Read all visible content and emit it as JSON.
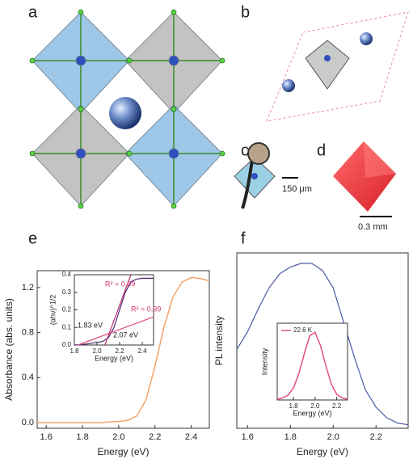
{
  "panel_labels": [
    "a",
    "b",
    "c",
    "d",
    "e",
    "f"
  ],
  "scale_bars": [
    "150 μm",
    "0.3 mm"
  ],
  "chart_data": [
    {
      "type": "line",
      "xlabel": "Energy (eV)",
      "ylabel": "Absorbance (abs. units)",
      "x": [
        1.55,
        1.6,
        1.65,
        1.7,
        1.75,
        1.8,
        1.85,
        1.9,
        1.95,
        2.0,
        2.05,
        2.1,
        2.15,
        2.2,
        2.25,
        2.3,
        2.35,
        2.4,
        2.45,
        2.5
      ],
      "series": [
        {
          "color": "#f2a46a",
          "values": [
            0.0,
            0.0,
            0.0,
            0.0,
            0.0,
            0.0,
            0.0,
            0.0,
            0.005,
            0.01,
            0.02,
            0.06,
            0.2,
            0.5,
            0.85,
            1.12,
            1.25,
            1.29,
            1.28,
            1.26
          ]
        }
      ],
      "xlim": [
        1.55,
        2.5
      ],
      "ylim": [
        -0.05,
        1.35
      ],
      "xticks": [
        1.6,
        1.8,
        {
          "value": 2,
          "label": "2.0"
        },
        2.2,
        2.4
      ],
      "yticks": [
        {
          "value": 0,
          "label": "0.0"
        },
        0.4,
        0.8,
        1.2
      ]
    },
    {
      "type": "line",
      "xlabel": "Energy (eV)",
      "ylabel": "(αhν)^1/2",
      "series": [
        {
          "color": "#4a2a6e",
          "x": [
            1.8,
            1.85,
            1.9,
            1.95,
            2.0,
            2.05,
            2.1,
            2.15,
            2.2,
            2.25,
            2.3,
            2.35,
            2.4,
            2.45,
            2.5
          ],
          "values": [
            0,
            0.002,
            0.005,
            0.01,
            0.015,
            0.02,
            0.04,
            0.1,
            0.2,
            0.3,
            0.36,
            0.375,
            0.38,
            0.38,
            0.38
          ]
        },
        {
          "color": "#e05080",
          "x": [
            1.83,
            2.5
          ],
          "values": [
            0,
            0.16
          ]
        },
        {
          "color": "#c03070",
          "x": [
            2.07,
            2.3
          ],
          "values": [
            0,
            0.4
          ]
        }
      ],
      "xlim": [
        1.8,
        2.5
      ],
      "ylim": [
        0,
        0.4
      ],
      "xticks": [
        1.8,
        {
          "value": 2,
          "label": "2.0"
        },
        2.2,
        2.4
      ],
      "yticks": [
        {
          "value": 0,
          "label": "0.0"
        },
        0.1,
        0.2,
        0.3,
        0.4
      ],
      "annotations": [
        "R² = 0.99",
        "R² = 0.99",
        "1.83 eV",
        "2.07 eV"
      ]
    },
    {
      "type": "line",
      "xlabel": "Energy (eV)",
      "ylabel": "PL intensity",
      "x": [
        1.55,
        1.6,
        1.65,
        1.7,
        1.75,
        1.8,
        1.85,
        1.9,
        1.95,
        2.0,
        2.05,
        2.1,
        2.15,
        2.2,
        2.25,
        2.3,
        2.35
      ],
      "series": [
        {
          "color": "#4a5aa8",
          "values": [
            0.45,
            0.55,
            0.68,
            0.8,
            0.88,
            0.92,
            0.94,
            0.94,
            0.9,
            0.8,
            0.6,
            0.4,
            0.22,
            0.12,
            0.06,
            0.03,
            0.02
          ]
        }
      ],
      "xlim": [
        1.55,
        2.35
      ],
      "ylim": [
        0,
        1
      ],
      "xticks": [
        1.6,
        1.8,
        {
          "value": 2,
          "label": "2.0"
        },
        2.2
      ]
    },
    {
      "type": "line",
      "xlabel": "Energy (eV)",
      "ylabel": "Intensity",
      "x": [
        1.65,
        1.7,
        1.75,
        1.8,
        1.85,
        1.9,
        1.95,
        2.0,
        2.05,
        2.1,
        2.15,
        2.2,
        2.25,
        2.3
      ],
      "series": [
        {
          "name": "22.6 K",
          "color": "#e0507a",
          "values": [
            0.01,
            0.03,
            0.07,
            0.17,
            0.38,
            0.66,
            0.92,
            0.97,
            0.78,
            0.49,
            0.23,
            0.08,
            0.03,
            0.01
          ]
        }
      ],
      "xlim": [
        1.65,
        2.3
      ],
      "ylim": [
        0,
        1.1
      ],
      "xticks": [
        1.8,
        {
          "value": 2,
          "label": "2.0"
        },
        2.2
      ]
    }
  ]
}
